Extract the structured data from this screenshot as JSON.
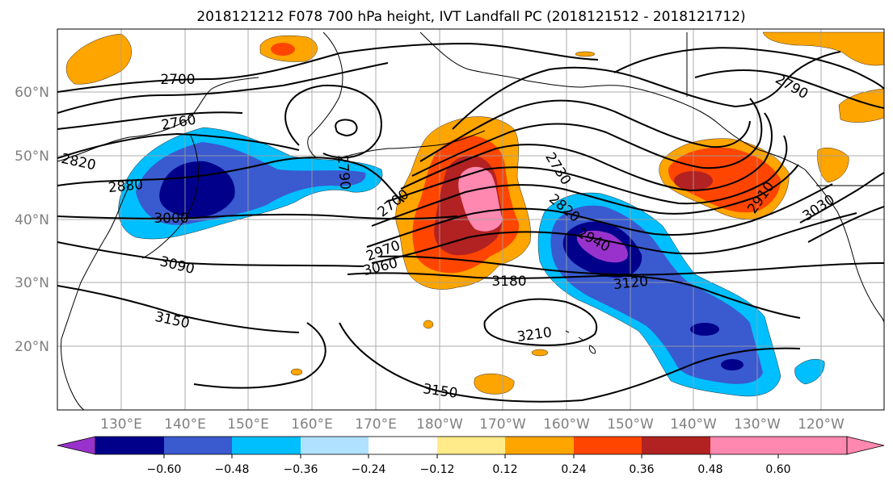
{
  "title": "2018121212 F078 700 hPa height, IVT Landfall PC (2018121512 - 2018121712)",
  "map": {
    "lon_range": [
      120,
      250
    ],
    "lat_range": [
      10,
      70
    ],
    "lat_labels": [
      "20°N",
      "30°N",
      "40°N",
      "50°N",
      "60°N"
    ],
    "lon_labels": [
      "130°E",
      "140°E",
      "150°E",
      "160°E",
      "170°E",
      "180°W",
      "170°W",
      "160°W",
      "150°W",
      "140°W",
      "130°W",
      "120°W"
    ],
    "gridlines": true
  },
  "contour_labels": [
    "2700",
    "2760",
    "2820",
    "2880",
    "3000",
    "3090",
    "3150",
    "2790",
    "3030",
    "2910",
    "2730",
    "2820",
    "2940",
    "3120",
    "3180",
    "3210",
    "3150",
    "2700",
    "2970",
    "3060",
    "2790"
  ],
  "colorbar": {
    "colors": [
      "#9932cc",
      "#00008b",
      "#3a5ad0",
      "#00bfff",
      "#b0e2ff",
      "#ffffff",
      "#ffeb8a",
      "#ffa500",
      "#ff4500",
      "#b22222",
      "#ff88b0"
    ],
    "ticks": [
      "−0.60",
      "−0.48",
      "−0.36",
      "−0.24",
      "−0.12",
      "0.12",
      "0.24",
      "0.36",
      "0.48",
      "0.60"
    ],
    "extend": "both"
  }
}
